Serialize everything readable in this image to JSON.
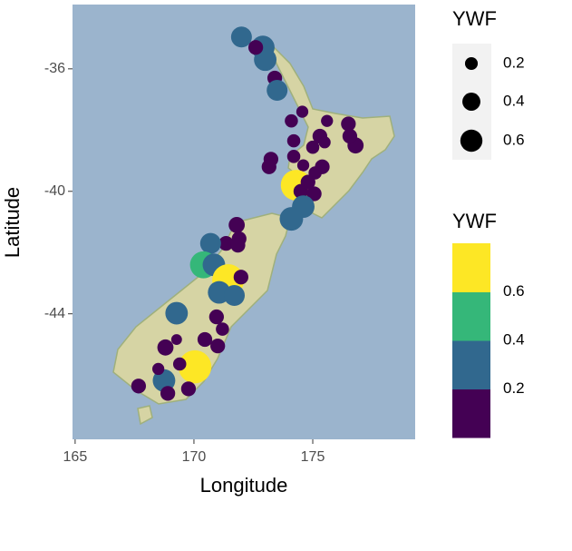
{
  "chart_data": {
    "type": "scatter",
    "x_label": "Longitude",
    "y_label": "Latitude",
    "xlim": [
      164.89,
      179.31
    ],
    "ylim": [
      -48.1,
      -33.9
    ],
    "xticks": [
      165,
      170,
      175
    ],
    "yticks": [
      -36,
      -40,
      -44
    ],
    "x": [
      172.0,
      172.9,
      173.0,
      172.6,
      173.4,
      173.5,
      174.1,
      174.56,
      175.6,
      176.5,
      176.8,
      176.56,
      175.3,
      175.0,
      175.5,
      174.2,
      173.24,
      173.16,
      174.2,
      174.6,
      175.4,
      175.1,
      174.3,
      174.5,
      175.06,
      174.8,
      174.6,
      174.1,
      171.8,
      171.9,
      171.35,
      171.85,
      170.7,
      170.4,
      170.84,
      171.44,
      171.06,
      171.98,
      171.7,
      169.27,
      170.95,
      171.2,
      170.46,
      171.0,
      168.8,
      169.27,
      170.04,
      169.4,
      168.74,
      168.9,
      167.67,
      169.77,
      168.5
    ],
    "y": [
      -34.96,
      -35.3,
      -35.7,
      -35.3,
      -36.3,
      -36.7,
      -37.7,
      -37.4,
      -37.7,
      -37.8,
      -38.5,
      -38.2,
      -38.2,
      -38.56,
      -38.4,
      -38.35,
      -38.95,
      -39.2,
      -38.86,
      -39.15,
      -39.2,
      -39.4,
      -39.8,
      -40.0,
      -40.08,
      -39.7,
      -40.5,
      -40.9,
      -41.1,
      -41.55,
      -41.7,
      -41.76,
      -41.7,
      -42.4,
      -42.4,
      -42.9,
      -43.3,
      -42.8,
      -43.4,
      -43.98,
      -44.1,
      -44.5,
      -44.84,
      -45.05,
      -45.1,
      -44.84,
      -45.73,
      -45.64,
      -46.18,
      -46.6,
      -46.36,
      -46.45,
      -45.8
    ],
    "sizes": [
      0.3,
      0.38,
      0.35,
      0.15,
      0.15,
      0.3,
      0.12,
      0.1,
      0.1,
      0.15,
      0.18,
      0.15,
      0.15,
      0.12,
      0.1,
      0.12,
      0.15,
      0.15,
      0.12,
      0.1,
      0.15,
      0.12,
      0.65,
      0.15,
      0.15,
      0.15,
      0.35,
      0.38,
      0.18,
      0.15,
      0.15,
      0.15,
      0.3,
      0.5,
      0.35,
      0.7,
      0.35,
      0.15,
      0.3,
      0.35,
      0.15,
      0.12,
      0.15,
      0.15,
      0.18,
      0.08,
      0.75,
      0.12,
      0.35,
      0.15,
      0.15,
      0.15,
      0.1
    ],
    "size_legend": {
      "title": "YWF",
      "values": [
        0.2,
        0.4,
        0.6
      ]
    },
    "color_legend": {
      "title": "YWF",
      "breaks": [
        0.2,
        0.4,
        0.6
      ],
      "colors": [
        "#440154",
        "#31688e",
        "#35b779",
        "#fde725"
      ]
    }
  }
}
